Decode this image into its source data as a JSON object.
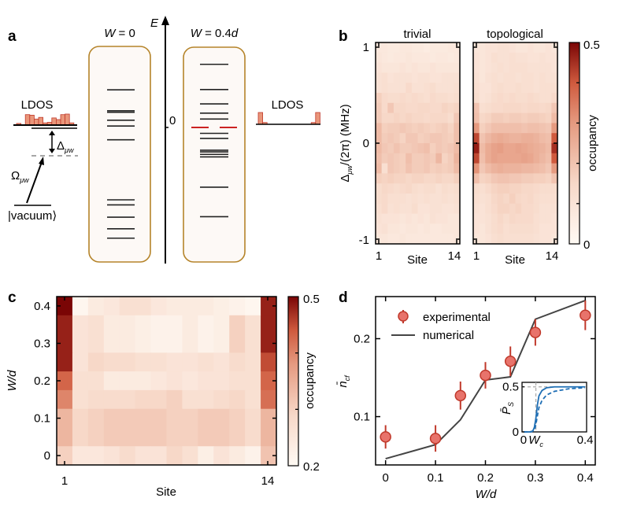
{
  "panel_labels": {
    "a": "a",
    "b": "b",
    "c": "c",
    "d": "d"
  },
  "chart_data": [
    {
      "panel": "a",
      "type": "diagram",
      "energy_axis_label": "E",
      "zero_label": "0",
      "left_column_title": "W = 0",
      "right_column_title": "W = 0.4d",
      "ldos_label": "LDOS",
      "detuning_label": "Δμw",
      "drive_label": "Ωμw",
      "vacuum_label": "|vacuum⟩",
      "levels_W0": [
        0.52,
        0.23,
        0.21,
        0.1,
        0.02,
        -0.17,
        -1.0,
        -1.07,
        -1.24,
        -1.4,
        -1.53
      ],
      "levels_W04": [
        0.75,
        0.45,
        0.28,
        0.17,
        0.1,
        -0.07,
        -0.13,
        -0.27,
        -0.29,
        -0.32,
        -0.35,
        -0.71,
        -1.06
      ],
      "edge_levels_W04": [
        0.0,
        0.0
      ],
      "ldos_left": [
        0.15,
        0.0,
        0.95,
        0.9,
        0.55,
        0.7,
        0.2,
        0.25,
        0.65,
        0.5,
        0.95,
        1.0,
        0.2,
        0.0
      ],
      "ldos_right": [
        1.0,
        0.15,
        0.0,
        0.0,
        0.0,
        0.0,
        0.0,
        0.0,
        0.0,
        0.0,
        0.0,
        0.0,
        0.15,
        1.0
      ],
      "colors": {
        "box_stroke": "#b5842a",
        "box_fill": "#fdf9f6",
        "edge_level": "#cc2222",
        "ldos_bar": "#e9967a",
        "ldos_bar_stroke": "#c0392b"
      }
    },
    {
      "panel": "b",
      "type": "heatmap",
      "subplots": [
        {
          "title": "trivial",
          "key": "trivial"
        },
        {
          "title": "topological",
          "key": "topological"
        }
      ],
      "ylabel": "Δμw/(2π) (MHz)",
      "xlabel": "Site",
      "xticks": [
        "1",
        "14"
      ],
      "yticks": [
        "1",
        "0",
        "-1"
      ],
      "ylim": [
        -1,
        1
      ],
      "colorbar_label": "occupancy",
      "colorbar_ticks": [
        "0.5",
        "0"
      ],
      "clim": [
        0,
        0.5
      ],
      "rows_top_to_bottom": 20,
      "columns": 14,
      "trivial": [
        [
          0.08,
          0.08,
          0.07,
          0.07,
          0.08,
          0.08,
          0.07,
          0.07,
          0.06,
          0.07,
          0.07,
          0.07,
          0.08,
          0.08
        ],
        [
          0.09,
          0.08,
          0.07,
          0.08,
          0.08,
          0.09,
          0.08,
          0.08,
          0.08,
          0.07,
          0.08,
          0.08,
          0.07,
          0.08
        ],
        [
          0.1,
          0.09,
          0.09,
          0.09,
          0.1,
          0.09,
          0.1,
          0.09,
          0.09,
          0.1,
          0.09,
          0.09,
          0.09,
          0.09
        ],
        [
          0.11,
          0.12,
          0.1,
          0.11,
          0.11,
          0.11,
          0.1,
          0.11,
          0.11,
          0.1,
          0.1,
          0.11,
          0.11,
          0.11
        ],
        [
          0.11,
          0.12,
          0.11,
          0.11,
          0.11,
          0.14,
          0.11,
          0.11,
          0.12,
          0.13,
          0.11,
          0.11,
          0.11,
          0.12
        ],
        [
          0.17,
          0.14,
          0.13,
          0.13,
          0.14,
          0.13,
          0.14,
          0.13,
          0.12,
          0.14,
          0.13,
          0.13,
          0.12,
          0.13
        ],
        [
          0.18,
          0.14,
          0.19,
          0.15,
          0.15,
          0.14,
          0.14,
          0.15,
          0.15,
          0.14,
          0.14,
          0.16,
          0.15,
          0.16
        ],
        [
          0.18,
          0.15,
          0.15,
          0.16,
          0.15,
          0.16,
          0.15,
          0.15,
          0.14,
          0.15,
          0.15,
          0.15,
          0.13,
          0.19
        ],
        [
          0.22,
          0.17,
          0.18,
          0.18,
          0.19,
          0.18,
          0.17,
          0.18,
          0.17,
          0.16,
          0.17,
          0.18,
          0.16,
          0.21
        ],
        [
          0.22,
          0.18,
          0.19,
          0.18,
          0.16,
          0.19,
          0.19,
          0.17,
          0.18,
          0.19,
          0.19,
          0.18,
          0.17,
          0.21
        ],
        [
          0.22,
          0.19,
          0.18,
          0.2,
          0.18,
          0.18,
          0.19,
          0.2,
          0.21,
          0.17,
          0.19,
          0.18,
          0.19,
          0.22
        ],
        [
          0.21,
          0.18,
          0.19,
          0.18,
          0.17,
          0.21,
          0.18,
          0.18,
          0.19,
          0.18,
          0.23,
          0.16,
          0.18,
          0.24
        ],
        [
          0.22,
          0.12,
          0.19,
          0.18,
          0.17,
          0.2,
          0.18,
          0.18,
          0.19,
          0.17,
          0.18,
          0.17,
          0.18,
          0.22
        ],
        [
          0.17,
          0.16,
          0.17,
          0.16,
          0.16,
          0.15,
          0.16,
          0.16,
          0.15,
          0.15,
          0.16,
          0.15,
          0.15,
          0.17
        ],
        [
          0.13,
          0.15,
          0.14,
          0.13,
          0.14,
          0.15,
          0.13,
          0.12,
          0.13,
          0.13,
          0.11,
          0.13,
          0.12,
          0.13
        ],
        [
          0.13,
          0.14,
          0.12,
          0.12,
          0.12,
          0.11,
          0.12,
          0.11,
          0.12,
          0.11,
          0.11,
          0.12,
          0.11,
          0.12
        ],
        [
          0.12,
          0.14,
          0.11,
          0.12,
          0.11,
          0.11,
          0.13,
          0.1,
          0.1,
          0.11,
          0.11,
          0.1,
          0.1,
          0.11
        ],
        [
          0.11,
          0.1,
          0.1,
          0.1,
          0.09,
          0.1,
          0.09,
          0.1,
          0.09,
          0.11,
          0.1,
          0.1,
          0.09,
          0.09
        ],
        [
          0.1,
          0.11,
          0.09,
          0.09,
          0.08,
          0.09,
          0.09,
          0.08,
          0.09,
          0.08,
          0.08,
          0.09,
          0.09,
          0.09
        ],
        [
          0.09,
          0.09,
          0.08,
          0.08,
          0.09,
          0.08,
          0.08,
          0.08,
          0.08,
          0.08,
          0.08,
          0.08,
          0.08,
          0.09
        ]
      ],
      "topological": [
        [
          0.09,
          0.09,
          0.1,
          0.1,
          0.11,
          0.11,
          0.1,
          0.09,
          0.09,
          0.1,
          0.09,
          0.09,
          0.1,
          0.09
        ],
        [
          0.1,
          0.09,
          0.1,
          0.12,
          0.11,
          0.11,
          0.12,
          0.11,
          0.11,
          0.1,
          0.1,
          0.11,
          0.1,
          0.1
        ],
        [
          0.1,
          0.09,
          0.1,
          0.11,
          0.12,
          0.11,
          0.12,
          0.12,
          0.12,
          0.11,
          0.11,
          0.11,
          0.11,
          0.1
        ],
        [
          0.11,
          0.09,
          0.11,
          0.12,
          0.11,
          0.12,
          0.12,
          0.11,
          0.12,
          0.12,
          0.11,
          0.12,
          0.11,
          0.11
        ],
        [
          0.12,
          0.1,
          0.1,
          0.12,
          0.13,
          0.12,
          0.12,
          0.13,
          0.12,
          0.12,
          0.11,
          0.12,
          0.12,
          0.12
        ],
        [
          0.13,
          0.1,
          0.11,
          0.13,
          0.14,
          0.13,
          0.14,
          0.13,
          0.13,
          0.14,
          0.13,
          0.12,
          0.12,
          0.14
        ],
        [
          0.2,
          0.12,
          0.13,
          0.14,
          0.14,
          0.15,
          0.15,
          0.15,
          0.14,
          0.15,
          0.15,
          0.14,
          0.15,
          0.19
        ],
        [
          0.21,
          0.15,
          0.16,
          0.18,
          0.18,
          0.17,
          0.18,
          0.18,
          0.17,
          0.18,
          0.18,
          0.17,
          0.16,
          0.22
        ],
        [
          0.3,
          0.17,
          0.19,
          0.21,
          0.21,
          0.21,
          0.21,
          0.21,
          0.2,
          0.21,
          0.21,
          0.2,
          0.19,
          0.3
        ],
        [
          0.42,
          0.2,
          0.23,
          0.25,
          0.26,
          0.25,
          0.24,
          0.24,
          0.25,
          0.25,
          0.24,
          0.22,
          0.21,
          0.4
        ],
        [
          0.47,
          0.22,
          0.26,
          0.28,
          0.29,
          0.27,
          0.27,
          0.28,
          0.27,
          0.26,
          0.25,
          0.24,
          0.22,
          0.45
        ],
        [
          0.42,
          0.21,
          0.26,
          0.28,
          0.27,
          0.27,
          0.27,
          0.27,
          0.28,
          0.27,
          0.25,
          0.23,
          0.21,
          0.4
        ],
        [
          0.31,
          0.19,
          0.22,
          0.24,
          0.25,
          0.24,
          0.24,
          0.24,
          0.23,
          0.23,
          0.22,
          0.21,
          0.19,
          0.3
        ],
        [
          0.21,
          0.16,
          0.17,
          0.19,
          0.2,
          0.2,
          0.19,
          0.19,
          0.18,
          0.18,
          0.17,
          0.17,
          0.16,
          0.2
        ],
        [
          0.13,
          0.12,
          0.14,
          0.16,
          0.17,
          0.17,
          0.16,
          0.16,
          0.15,
          0.15,
          0.14,
          0.13,
          0.13,
          0.13
        ],
        [
          0.12,
          0.11,
          0.12,
          0.15,
          0.16,
          0.15,
          0.17,
          0.15,
          0.14,
          0.15,
          0.13,
          0.12,
          0.12,
          0.12
        ],
        [
          0.11,
          0.1,
          0.12,
          0.14,
          0.16,
          0.16,
          0.15,
          0.16,
          0.14,
          0.14,
          0.13,
          0.11,
          0.11,
          0.11
        ],
        [
          0.1,
          0.1,
          0.11,
          0.13,
          0.15,
          0.13,
          0.15,
          0.14,
          0.14,
          0.14,
          0.12,
          0.11,
          0.11,
          0.1
        ],
        [
          0.1,
          0.09,
          0.11,
          0.13,
          0.14,
          0.12,
          0.13,
          0.13,
          0.13,
          0.13,
          0.12,
          0.1,
          0.1,
          0.1
        ],
        [
          0.09,
          0.09,
          0.1,
          0.12,
          0.13,
          0.12,
          0.12,
          0.12,
          0.12,
          0.12,
          0.11,
          0.1,
          0.1,
          0.09
        ]
      ]
    },
    {
      "panel": "c",
      "type": "heatmap",
      "xlabel": "Site",
      "ylabel": "W/d",
      "xticks": [
        "1",
        "14"
      ],
      "yticks": [
        "0",
        "0.1",
        "0.2",
        "0.3",
        "0.4"
      ],
      "ylim": [
        -0.025,
        0.425
      ],
      "colorbar_label": "occupancy",
      "colorbar_ticks": [
        "0.5",
        "0.2"
      ],
      "clim": [
        0.2,
        0.5
      ],
      "columns": 14,
      "rows": [
        {
          "W": 0.4,
          "span": [
            0.375,
            0.425
          ],
          "values": [
            0.5,
            0.21,
            0.24,
            0.25,
            0.27,
            0.27,
            0.25,
            0.24,
            0.24,
            0.24,
            0.23,
            0.22,
            0.21,
            0.48
          ]
        },
        {
          "W": 0.3,
          "span": [
            0.275,
            0.375
          ],
          "values": [
            0.48,
            0.26,
            0.27,
            0.24,
            0.24,
            0.23,
            0.22,
            0.22,
            0.24,
            0.22,
            0.23,
            0.3,
            0.27,
            0.48
          ]
        },
        {
          "W": 0.25,
          "span": [
            0.225,
            0.275
          ],
          "values": [
            0.48,
            0.26,
            0.29,
            0.28,
            0.28,
            0.27,
            0.27,
            0.26,
            0.26,
            0.27,
            0.26,
            0.28,
            0.27,
            0.45
          ]
        },
        {
          "W": 0.2,
          "span": [
            0.175,
            0.225
          ],
          "values": [
            0.43,
            0.27,
            0.27,
            0.24,
            0.24,
            0.24,
            0.25,
            0.26,
            0.25,
            0.26,
            0.26,
            0.27,
            0.27,
            0.43
          ]
        },
        {
          "W": 0.15,
          "span": [
            0.125,
            0.175
          ],
          "values": [
            0.4,
            0.27,
            0.28,
            0.28,
            0.28,
            0.29,
            0.29,
            0.3,
            0.27,
            0.27,
            0.28,
            0.29,
            0.27,
            0.42
          ]
        },
        {
          "W": 0.1,
          "span": [
            0.025,
            0.125
          ],
          "values": [
            0.34,
            0.29,
            0.3,
            0.31,
            0.31,
            0.31,
            0.31,
            0.3,
            0.3,
            0.31,
            0.31,
            0.3,
            0.28,
            0.34
          ]
        },
        {
          "W": 0,
          "span": [
            -0.025,
            0.025
          ],
          "values": [
            0.3,
            0.25,
            0.25,
            0.26,
            0.28,
            0.26,
            0.26,
            0.29,
            0.27,
            0.23,
            0.26,
            0.24,
            0.22,
            0.32
          ]
        }
      ]
    },
    {
      "panel": "d",
      "type": "line",
      "xlabel": "W/d",
      "ylabel": "n̄cf",
      "xticks": [
        "0",
        "0.1",
        "0.2",
        "0.3",
        "0.4"
      ],
      "yticks": [
        "0.1",
        "0.2"
      ],
      "xlim": [
        -0.02,
        0.42
      ],
      "ylim": [
        0.038,
        0.254
      ],
      "legend": {
        "placement": "top-left",
        "entries": [
          "experimental",
          "numerical"
        ]
      },
      "series": [
        {
          "name": "experimental",
          "kind": "scatter-errorbar",
          "color": "#e8736b",
          "x": [
            0,
            0.1,
            0.15,
            0.2,
            0.25,
            0.3,
            0.4
          ],
          "y": [
            0.074,
            0.072,
            0.127,
            0.153,
            0.171,
            0.208,
            0.23
          ],
          "yerr": [
            0.015,
            0.017,
            0.018,
            0.017,
            0.019,
            0.017,
            0.019
          ]
        },
        {
          "name": "numerical",
          "kind": "line",
          "color": "#444444",
          "x": [
            0,
            0.1,
            0.15,
            0.2,
            0.25,
            0.3,
            0.4
          ],
          "y": [
            0.046,
            0.064,
            0.096,
            0.147,
            0.151,
            0.225,
            0.249
          ]
        }
      ],
      "inset": {
        "ylabel": "P̄S",
        "xticks": [
          "0",
          "Wc",
          "0.4"
        ],
        "yticks": [
          "0",
          "0.5"
        ],
        "xlim": [
          -0.01,
          0.41
        ],
        "ylim": [
          0,
          0.55
        ],
        "critical_W": 0.08,
        "series": [
          {
            "name": "solid",
            "style": "solid",
            "color": "#1f6fb5",
            "x": [
              0,
              0.04,
              0.06,
              0.07,
              0.08,
              0.09,
              0.1,
              0.12,
              0.15,
              0.2,
              0.3,
              0.4
            ],
            "y": [
              0,
              0,
              0.01,
              0.05,
              0.15,
              0.3,
              0.4,
              0.46,
              0.49,
              0.5,
              0.5,
              0.5
            ]
          },
          {
            "name": "dashed",
            "style": "dashed",
            "color": "#1f6fb5",
            "x": [
              0,
              0.05,
              0.07,
              0.08,
              0.09,
              0.1,
              0.12,
              0.15,
              0.2,
              0.3,
              0.4
            ],
            "y": [
              0,
              0,
              0.02,
              0.08,
              0.18,
              0.27,
              0.35,
              0.41,
              0.45,
              0.48,
              0.49
            ]
          }
        ]
      }
    }
  ]
}
